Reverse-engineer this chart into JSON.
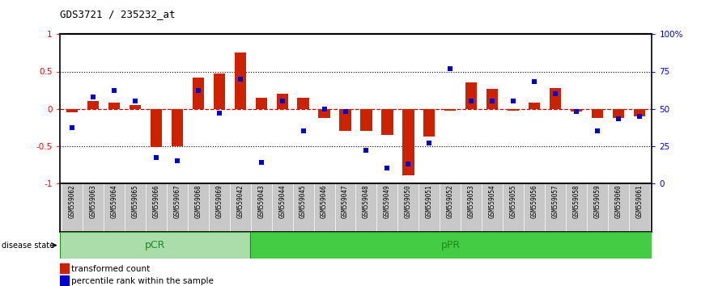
{
  "title": "GDS3721 / 235232_at",
  "samples": [
    "GSM559062",
    "GSM559063",
    "GSM559064",
    "GSM559065",
    "GSM559066",
    "GSM559067",
    "GSM559068",
    "GSM559069",
    "GSM559042",
    "GSM559043",
    "GSM559044",
    "GSM559045",
    "GSM559046",
    "GSM559047",
    "GSM559048",
    "GSM559049",
    "GSM559050",
    "GSM559051",
    "GSM559052",
    "GSM559053",
    "GSM559054",
    "GSM559055",
    "GSM559056",
    "GSM559057",
    "GSM559058",
    "GSM559059",
    "GSM559060",
    "GSM559061"
  ],
  "bar_values": [
    -0.05,
    0.1,
    0.08,
    0.05,
    -0.52,
    -0.5,
    0.42,
    0.47,
    0.75,
    0.15,
    0.2,
    0.15,
    -0.12,
    -0.3,
    -0.3,
    -0.35,
    -0.9,
    -0.38,
    -0.03,
    0.35,
    0.27,
    -0.03,
    0.08,
    0.28,
    -0.04,
    -0.13,
    -0.12,
    -0.1
  ],
  "dot_values": [
    37,
    58,
    62,
    55,
    17,
    15,
    62,
    47,
    70,
    14,
    55,
    35,
    50,
    48,
    22,
    10,
    13,
    27,
    77,
    55,
    55,
    55,
    68,
    60,
    48,
    35,
    43,
    45
  ],
  "pCR_count": 9,
  "pPR_count": 19,
  "bar_color": "#CC2200",
  "dot_color": "#0000CC",
  "zero_line_color": "#CC0000",
  "tick_bg_color": "#C8C8C8",
  "pCR_color": "#AADDAA",
  "pPR_color": "#44CC44",
  "pCR_text_color": "#228822",
  "pPR_text_color": "#228822",
  "disease_state_label": "disease state",
  "legend_bar_label": "transformed count",
  "legend_dot_label": "percentile rank within the sample",
  "ylim": [
    -1.0,
    1.0
  ],
  "left_yticks": [
    -1,
    -0.5,
    0,
    0.5,
    1
  ],
  "left_yticklabels": [
    "-1",
    "-0.5",
    "0",
    "0.5",
    "1"
  ],
  "right_ytick_positions": [
    -1.0,
    -0.5,
    0.0,
    0.5,
    1.0
  ],
  "right_yticklabels": [
    "0",
    "25",
    "50",
    "75",
    "100%"
  ]
}
